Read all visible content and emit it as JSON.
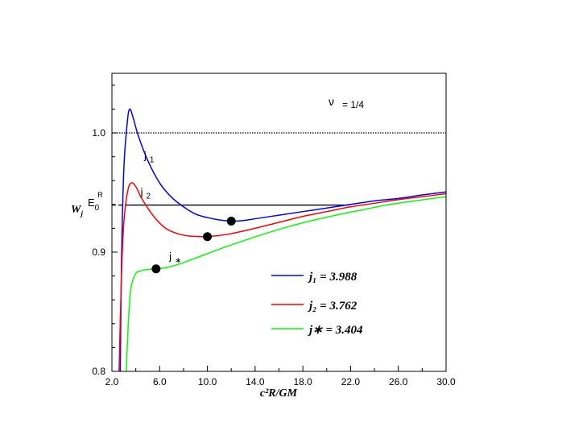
{
  "chart_data": {
    "type": "line",
    "xlabel": "c²R/GM",
    "ylabel": "W_j",
    "xlim": [
      2.0,
      30.0
    ],
    "ylim": [
      0.8,
      1.05
    ],
    "x_ticks": [
      "2.0",
      "6.0",
      "10.0",
      "14.0",
      "18.0",
      "22.0",
      "26.0",
      "30.0"
    ],
    "y_ticks": [
      {
        "value": 0.8,
        "label": "0.8"
      },
      {
        "value": 0.9,
        "label": "0.9"
      },
      {
        "value": 1.0,
        "label": "1.0"
      }
    ],
    "annotation": {
      "symbol": "ν",
      "text": "= 1/4"
    },
    "reference_lines": {
      "unity": {
        "y": 1.0,
        "style": "dotted"
      },
      "E0R": {
        "label_main": "E",
        "label_sub": "0",
        "label_sup": "R",
        "y": 0.9395,
        "x_dash_end": 3.4,
        "x_solid_end": 21.9
      }
    },
    "series": [
      {
        "name": "j₁ = 3.988",
        "label": "j",
        "sub": "1",
        "color": "#0000ff",
        "points": [
          [
            2.7,
            0.8
          ],
          [
            2.8,
            0.89
          ],
          [
            3.0,
            0.97
          ],
          [
            3.3,
            1.01
          ],
          [
            3.5,
            1.02
          ],
          [
            3.8,
            1.012
          ],
          [
            4.2,
            0.998
          ],
          [
            5.0,
            0.977
          ],
          [
            6.0,
            0.958
          ],
          [
            7.0,
            0.946
          ],
          [
            8.0,
            0.938
          ],
          [
            9.0,
            0.932
          ],
          [
            10.0,
            0.929
          ],
          [
            11.0,
            0.927
          ],
          [
            12.0,
            0.926
          ],
          [
            13.0,
            0.9265
          ],
          [
            14.0,
            0.928
          ],
          [
            16.0,
            0.931
          ],
          [
            18.0,
            0.934
          ],
          [
            20.0,
            0.937
          ],
          [
            22.0,
            0.94
          ],
          [
            24.0,
            0.943
          ],
          [
            26.0,
            0.945
          ],
          [
            28.0,
            0.948
          ],
          [
            30.0,
            0.9505
          ]
        ],
        "marker": [
          12.0,
          0.926
        ]
      },
      {
        "name": "j₂ = 3.762",
        "label": "j",
        "sub": "2",
        "color": "#ff0000",
        "points": [
          [
            2.6,
            0.8
          ],
          [
            2.8,
            0.88
          ],
          [
            3.0,
            0.925
          ],
          [
            3.3,
            0.95
          ],
          [
            3.6,
            0.958
          ],
          [
            4.0,
            0.955
          ],
          [
            4.5,
            0.945
          ],
          [
            5.5,
            0.93
          ],
          [
            6.5,
            0.92
          ],
          [
            7.5,
            0.9155
          ],
          [
            8.5,
            0.9135
          ],
          [
            9.5,
            0.913
          ],
          [
            10.0,
            0.913
          ],
          [
            11.0,
            0.914
          ],
          [
            12.0,
            0.9155
          ],
          [
            14.0,
            0.92
          ],
          [
            16.0,
            0.925
          ],
          [
            18.0,
            0.93
          ],
          [
            20.0,
            0.934
          ],
          [
            22.0,
            0.938
          ],
          [
            24.0,
            0.941
          ],
          [
            26.0,
            0.944
          ],
          [
            28.0,
            0.9465
          ],
          [
            30.0,
            0.949
          ]
        ],
        "marker": [
          10.0,
          0.913
        ]
      },
      {
        "name": "j∗ = 3.404",
        "label": "j",
        "sub": "∗",
        "color": "#00ff00",
        "points": [
          [
            3.2,
            0.8
          ],
          [
            3.4,
            0.845
          ],
          [
            3.6,
            0.87
          ],
          [
            4.0,
            0.882
          ],
          [
            4.5,
            0.8845
          ],
          [
            5.0,
            0.8855
          ],
          [
            5.7,
            0.886
          ],
          [
            6.5,
            0.887
          ],
          [
            7.5,
            0.8895
          ],
          [
            9.0,
            0.895
          ],
          [
            11.0,
            0.9025
          ],
          [
            13.0,
            0.9095
          ],
          [
            15.0,
            0.916
          ],
          [
            17.0,
            0.922
          ],
          [
            19.0,
            0.927
          ],
          [
            21.0,
            0.9315
          ],
          [
            23.0,
            0.9355
          ],
          [
            25.0,
            0.9395
          ],
          [
            27.0,
            0.9425
          ],
          [
            30.0,
            0.9465
          ]
        ],
        "marker": [
          5.7,
          0.886
        ]
      }
    ]
  }
}
